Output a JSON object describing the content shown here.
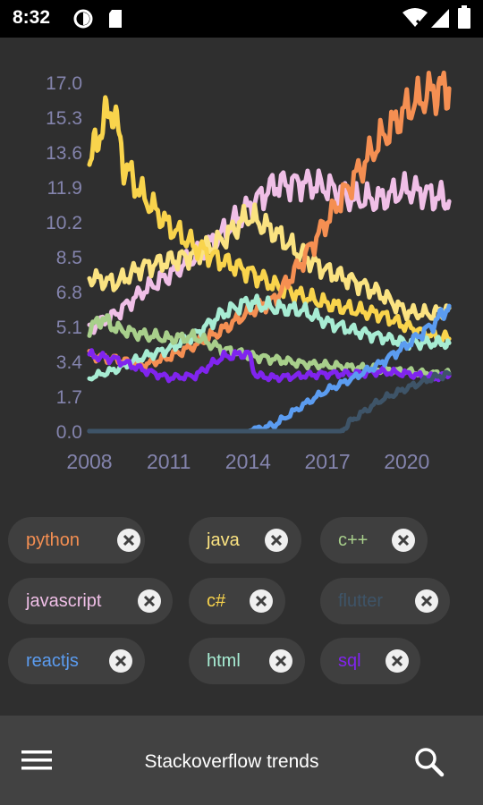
{
  "status_bar": {
    "time": "8:32",
    "icons": [
      "app-circle-icon",
      "sd-card-icon",
      "wifi-icon",
      "signal-icon",
      "battery-icon"
    ]
  },
  "app": {
    "title": "Stackoverflow trends",
    "menu_icon": "hamburger-menu-icon",
    "search_icon": "search-icon"
  },
  "chips": [
    {
      "label": "python",
      "color": "#f58f52"
    },
    {
      "label": "java",
      "color": "#fbe381"
    },
    {
      "label": "c++",
      "color": "#a8cf8b"
    },
    {
      "label": "javascript",
      "color": "#f0bfe7"
    },
    {
      "label": "c#",
      "color": "#f9d44c"
    },
    {
      "label": "flutter",
      "color": "#3e5468"
    },
    {
      "label": "reactjs",
      "color": "#5b9cf0"
    },
    {
      "label": "html",
      "color": "#a7ecd3"
    },
    {
      "label": "sql",
      "color": "#8024ee"
    }
  ],
  "chart_data": {
    "type": "line",
    "ylim": [
      0.0,
      17.0
    ],
    "yticks": [
      "0.0",
      "1.7",
      "3.4",
      "5.1",
      "6.8",
      "8.5",
      "10.2",
      "11.9",
      "13.6",
      "15.3",
      "17.0"
    ],
    "xlim": [
      2008,
      2021.8
    ],
    "xticks": [
      "2008",
      "2011",
      "2014",
      "2017",
      "2020"
    ],
    "series": [
      {
        "name": "javascript",
        "color": "#f0bfe7",
        "x": [
          2008,
          2009,
          2010,
          2011,
          2012,
          2013,
          2014,
          2015,
          2016,
          2017,
          2018,
          2019,
          2020,
          2021,
          2021.6
        ],
        "y": [
          5.0,
          5.7,
          6.8,
          7.6,
          8.5,
          9.6,
          10.9,
          12.0,
          12.1,
          11.9,
          11.3,
          11.3,
          11.8,
          11.5,
          11.2
        ]
      },
      {
        "name": "java",
        "color": "#fbe381",
        "x": [
          2008,
          2009,
          2010,
          2011,
          2012,
          2013,
          2014,
          2015,
          2016,
          2017,
          2018,
          2019,
          2020,
          2021,
          2021.6
        ],
        "y": [
          7.5,
          7.2,
          8.0,
          8.3,
          8.6,
          9.3,
          10.5,
          9.7,
          8.6,
          7.8,
          7.3,
          6.7,
          5.8,
          5.7,
          6.0
        ]
      },
      {
        "name": "c#",
        "color": "#f9d44c",
        "x": [
          2008,
          2008.5,
          2008.9,
          2009.3,
          2010,
          2011,
          2012,
          2013,
          2014,
          2015,
          2016,
          2017,
          2018,
          2019,
          2020,
          2021,
          2021.6
        ],
        "y": [
          13.0,
          15.0,
          15.8,
          13.0,
          11.5,
          10.0,
          9.0,
          8.3,
          7.8,
          7.1,
          6.6,
          6.2,
          5.9,
          5.7,
          5.1,
          4.6,
          4.5
        ]
      },
      {
        "name": "python",
        "color": "#f58f52",
        "x": [
          2008,
          2009,
          2010,
          2011,
          2012,
          2013,
          2014,
          2015,
          2016,
          2017,
          2018,
          2019,
          2020,
          2021,
          2021.6
        ],
        "y": [
          3.7,
          3.5,
          3.2,
          3.6,
          4.2,
          4.9,
          5.8,
          6.4,
          8.2,
          10.3,
          12.3,
          14.2,
          15.7,
          16.6,
          16.7
        ]
      },
      {
        "name": "html",
        "color": "#a7ecd3",
        "x": [
          2008,
          2009,
          2010,
          2011,
          2012,
          2013,
          2014,
          2015,
          2016,
          2017,
          2018,
          2019,
          2020,
          2021,
          2021.6
        ],
        "y": [
          2.6,
          3.0,
          3.6,
          4.0,
          4.7,
          5.7,
          6.3,
          6.0,
          5.9,
          5.3,
          4.9,
          4.6,
          4.3,
          4.3,
          4.3
        ]
      },
      {
        "name": "c++",
        "color": "#a8cf8b",
        "x": [
          2008,
          2008.5,
          2009,
          2010,
          2011,
          2012,
          2013,
          2014,
          2015,
          2016,
          2017,
          2018,
          2019,
          2020,
          2021,
          2021.6
        ],
        "y": [
          5.0,
          5.5,
          5.0,
          4.7,
          4.5,
          4.6,
          4.0,
          3.7,
          3.5,
          3.3,
          3.2,
          3.1,
          3.0,
          2.9,
          2.8,
          2.8
        ]
      },
      {
        "name": "sql",
        "color": "#8024ee",
        "x": [
          2008,
          2009,
          2010,
          2011,
          2012,
          2013,
          2014,
          2014.3,
          2015,
          2016,
          2017,
          2018,
          2019,
          2020,
          2021,
          2021.6
        ],
        "y": [
          3.7,
          3.5,
          3.0,
          2.6,
          2.7,
          3.6,
          3.8,
          2.7,
          2.6,
          2.7,
          2.8,
          2.8,
          2.9,
          2.8,
          2.6,
          2.7
        ]
      },
      {
        "name": "reactjs",
        "color": "#5b9cf0",
        "x": [
          2008,
          2014,
          2015,
          2016,
          2017,
          2018,
          2019,
          2020,
          2021,
          2021.6
        ],
        "y": [
          0.0,
          0.0,
          0.3,
          1.2,
          2.0,
          2.6,
          3.3,
          4.2,
          5.2,
          6.1
        ]
      },
      {
        "name": "flutter",
        "color": "#3e5468",
        "x": [
          2008,
          2017.5,
          2018,
          2019,
          2020,
          2021,
          2021.6
        ],
        "y": [
          0.0,
          0.0,
          0.6,
          1.5,
          2.1,
          2.6,
          2.8
        ]
      }
    ]
  }
}
